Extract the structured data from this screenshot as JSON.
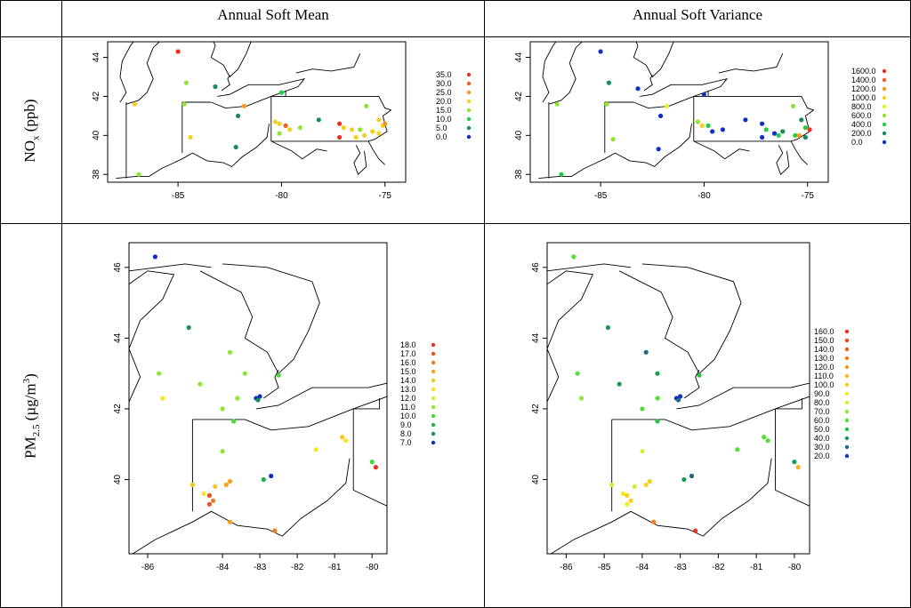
{
  "header": {
    "col1": "Annual Soft Mean",
    "col2": "Annual Soft Variance"
  },
  "rows": {
    "nox": {
      "main": "NO",
      "sub": "x",
      "rest": " (ppb)"
    },
    "pm": {
      "main": "PM",
      "sub": "2.5",
      "rest": " (µg/m",
      "sup": "3",
      "end": ")"
    }
  },
  "maps": {
    "nox_mean": {
      "xticks": [
        "-85",
        "-80",
        "-75"
      ],
      "yticks": [
        "44",
        "42",
        "40",
        "38"
      ],
      "legend": [
        "35.0",
        "30.0",
        "25.0",
        "20.0",
        "15.0",
        "10.0",
        "5.0",
        "0.0"
      ],
      "legend_colors": [
        "#e8321e",
        "#f06020",
        "#f59a20",
        "#f5d020",
        "#8fe632",
        "#22cc44",
        "#1a8c5a",
        "#1030c0"
      ]
    },
    "nox_var": {
      "xticks": [
        "-85",
        "-80",
        "-75"
      ],
      "yticks": [
        "44",
        "42",
        "40",
        "38"
      ],
      "legend": [
        "1600.0",
        "1400.0",
        "1200.0",
        "1000.0",
        "800.0",
        "600.0",
        "400.0",
        "200.0",
        "0.0"
      ],
      "legend_colors": [
        "#e8321e",
        "#f06020",
        "#f59a20",
        "#f5d020",
        "#eaf020",
        "#8fe632",
        "#22cc44",
        "#1a8c5a",
        "#1030c0"
      ]
    },
    "pm_mean": {
      "xticks": [
        "-86",
        "-84",
        "-83",
        "-82",
        "-81",
        "-80"
      ],
      "yticks": [
        "46",
        "44",
        "42",
        "40"
      ],
      "legend": [
        "18.0",
        "17.0",
        "16.0",
        "15.0",
        "14.0",
        "13.0",
        "12.0",
        "11.0",
        "10.0",
        "9.0",
        "8.0",
        "7.0"
      ],
      "legend_colors": [
        "#e8321e",
        "#ee5020",
        "#f07a20",
        "#f5a020",
        "#f5c820",
        "#f5e820",
        "#c8f030",
        "#8fe632",
        "#44d838",
        "#22b048",
        "#1a8c5a",
        "#1030c0"
      ]
    },
    "pm_var": {
      "xticks": [
        "-86",
        "-85",
        "-84",
        "-83",
        "-82",
        "-81",
        "-80"
      ],
      "yticks": [
        "46",
        "44",
        "42",
        "40"
      ],
      "legend": [
        "160.0",
        "150.0",
        "140.0",
        "130.0",
        "120.0",
        "110.0",
        "100.0",
        "90.0",
        "80.0",
        "70.0",
        "60.0",
        "50.0",
        "40.0",
        "30.0",
        "20.0"
      ],
      "legend_colors": [
        "#e8321e",
        "#ec4420",
        "#f06020",
        "#f27c20",
        "#f59820",
        "#f5b420",
        "#f5d020",
        "#f5ea20",
        "#d2f030",
        "#8fe632",
        "#55dc38",
        "#22c448",
        "#1a9c58",
        "#1a6a80",
        "#1030c0"
      ]
    }
  },
  "points": {
    "nox_mean": [
      [
        -85.0,
        44.3,
        0
      ],
      [
        -84.6,
        42.7,
        4
      ],
      [
        -83.2,
        42.5,
        6
      ],
      [
        -87.1,
        41.6,
        3
      ],
      [
        -84.7,
        41.6,
        4
      ],
      [
        -81.8,
        41.5,
        2
      ],
      [
        -82.1,
        41.0,
        6
      ],
      [
        -84.4,
        39.9,
        3
      ],
      [
        -82.2,
        39.4,
        6
      ],
      [
        -86.9,
        38.0,
        4
      ],
      [
        -80.0,
        42.2,
        5
      ],
      [
        -80.3,
        40.7,
        3
      ],
      [
        -80.1,
        40.6,
        3
      ],
      [
        -79.8,
        40.5,
        1
      ],
      [
        -79.6,
        40.3,
        3
      ],
      [
        -80.1,
        40.1,
        4
      ],
      [
        -79.1,
        40.4,
        4
      ],
      [
        -78.2,
        40.8,
        6
      ],
      [
        -77.2,
        40.6,
        0
      ],
      [
        -77.0,
        40.4,
        3
      ],
      [
        -76.6,
        40.3,
        3
      ],
      [
        -76.2,
        40.3,
        4
      ],
      [
        -75.6,
        40.2,
        3
      ],
      [
        -75.1,
        40.5,
        3
      ],
      [
        -77.2,
        39.9,
        0
      ],
      [
        -76.4,
        39.9,
        3
      ],
      [
        -76.0,
        40.0,
        3
      ],
      [
        -75.3,
        40.1,
        3
      ],
      [
        -75.9,
        41.5,
        4
      ],
      [
        -75.3,
        40.8,
        3
      ],
      [
        -75.0,
        40.6,
        2
      ]
    ],
    "nox_var": [
      [
        -85.0,
        44.3,
        8
      ],
      [
        -84.6,
        42.7,
        7
      ],
      [
        -83.2,
        42.4,
        8
      ],
      [
        -87.1,
        41.6,
        5
      ],
      [
        -84.7,
        41.6,
        5
      ],
      [
        -81.8,
        41.5,
        4
      ],
      [
        -82.1,
        41.0,
        8
      ],
      [
        -84.4,
        39.8,
        5
      ],
      [
        -82.2,
        39.3,
        8
      ],
      [
        -86.9,
        38.0,
        6
      ],
      [
        -80.0,
        42.1,
        8
      ],
      [
        -80.3,
        40.7,
        5
      ],
      [
        -80.1,
        40.5,
        3
      ],
      [
        -79.8,
        40.5,
        6
      ],
      [
        -79.6,
        40.2,
        8
      ],
      [
        -79.1,
        40.3,
        8
      ],
      [
        -78.0,
        40.8,
        8
      ],
      [
        -77.2,
        40.6,
        8
      ],
      [
        -77.0,
        40.3,
        6
      ],
      [
        -76.6,
        40.1,
        8
      ],
      [
        -76.2,
        40.2,
        7
      ],
      [
        -75.6,
        40.0,
        6
      ],
      [
        -75.1,
        40.4,
        6
      ],
      [
        -77.2,
        39.9,
        8
      ],
      [
        -76.4,
        40.0,
        6
      ],
      [
        -75.7,
        41.5,
        5
      ],
      [
        -75.3,
        40.8,
        7
      ],
      [
        -74.9,
        40.3,
        0
      ],
      [
        -75.1,
        39.9,
        7
      ],
      [
        -75.4,
        40.0,
        2
      ]
    ],
    "pm_mean": [
      [
        -85.8,
        46.3,
        11
      ],
      [
        -84.9,
        44.3,
        10
      ],
      [
        -83.8,
        43.6,
        7
      ],
      [
        -84.6,
        42.7,
        7
      ],
      [
        -85.7,
        43.0,
        7
      ],
      [
        -83.4,
        43.0,
        7
      ],
      [
        -82.5,
        42.95,
        8
      ],
      [
        -85.6,
        42.3,
        5
      ],
      [
        -83.6,
        42.3,
        7
      ],
      [
        -84.0,
        42.0,
        7
      ],
      [
        -83.1,
        42.3,
        11
      ],
      [
        -83.0,
        42.35,
        11
      ],
      [
        -83.05,
        42.25,
        10
      ],
      [
        -83.7,
        41.65,
        8
      ],
      [
        -84.0,
        40.8,
        7
      ],
      [
        -82.9,
        40.0,
        9
      ],
      [
        -82.7,
        40.1,
        11
      ],
      [
        -81.5,
        40.85,
        5
      ],
      [
        -80.8,
        41.2,
        4
      ],
      [
        -80.7,
        41.1,
        5
      ],
      [
        -80.0,
        40.5,
        8
      ],
      [
        -79.9,
        40.35,
        0
      ],
      [
        -84.8,
        39.85,
        4
      ],
      [
        -84.5,
        39.6,
        5
      ],
      [
        -84.2,
        39.8,
        4
      ],
      [
        -83.9,
        39.85,
        3
      ],
      [
        -83.8,
        39.95,
        3
      ],
      [
        -84.35,
        39.55,
        1
      ],
      [
        -84.25,
        39.4,
        2
      ],
      [
        -84.35,
        39.3,
        1
      ],
      [
        -83.8,
        38.8,
        3
      ],
      [
        -82.6,
        38.55,
        2
      ]
    ],
    "pm_var": [
      [
        -85.8,
        46.3,
        10
      ],
      [
        -84.9,
        44.3,
        12
      ],
      [
        -83.9,
        43.6,
        13
      ],
      [
        -84.6,
        42.7,
        12
      ],
      [
        -85.7,
        43.0,
        10
      ],
      [
        -83.6,
        43.0,
        12
      ],
      [
        -82.5,
        42.95,
        11
      ],
      [
        -85.6,
        42.3,
        9
      ],
      [
        -83.6,
        42.3,
        10
      ],
      [
        -84.0,
        42.0,
        10
      ],
      [
        -83.1,
        42.3,
        14
      ],
      [
        -83.0,
        42.35,
        14
      ],
      [
        -83.05,
        42.25,
        13
      ],
      [
        -83.6,
        41.65,
        11
      ],
      [
        -84.0,
        40.8,
        8
      ],
      [
        -82.9,
        40.0,
        12
      ],
      [
        -82.7,
        40.1,
        13
      ],
      [
        -81.5,
        40.85,
        10
      ],
      [
        -80.8,
        41.2,
        10
      ],
      [
        -80.7,
        41.1,
        10
      ],
      [
        -80.0,
        40.5,
        12
      ],
      [
        -79.9,
        40.35,
        5
      ],
      [
        -84.8,
        39.85,
        8
      ],
      [
        -84.5,
        39.6,
        7
      ],
      [
        -84.2,
        39.8,
        8
      ],
      [
        -83.9,
        39.85,
        6
      ],
      [
        -83.8,
        39.95,
        6
      ],
      [
        -84.4,
        39.55,
        6
      ],
      [
        -84.3,
        39.4,
        6
      ],
      [
        -84.4,
        39.3,
        7
      ],
      [
        -83.7,
        38.8,
        3
      ],
      [
        -82.6,
        38.55,
        0
      ]
    ]
  }
}
